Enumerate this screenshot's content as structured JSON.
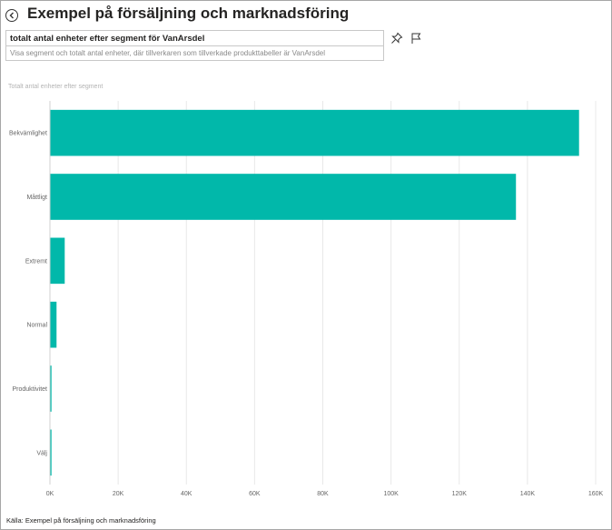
{
  "header": {
    "title": "Exempel på försäljning och marknadsföring",
    "back_icon": "back-arrow-icon"
  },
  "qa": {
    "question": "totalt antal enheter efter segment för VanArsdel",
    "restatement": "Visa segment och totalt antal enheter, där tillverkaren som tillverkade produkttabeller är VanArsdel",
    "pin_icon": "pin-icon",
    "flag_icon": "flag-icon"
  },
  "chart_data": {
    "type": "bar",
    "orientation": "horizontal",
    "title": "Totalt antal enheter efter segment",
    "categories": [
      "Bekvämlighet",
      "Måttligt",
      "Extremt",
      "Normal",
      "Produktivitet",
      "Välj"
    ],
    "values": [
      155000,
      136500,
      4200,
      1800,
      300,
      200
    ],
    "xlim": [
      0,
      160000
    ],
    "x_ticks": [
      0,
      20000,
      40000,
      60000,
      80000,
      100000,
      120000,
      140000,
      160000
    ],
    "x_tick_labels": [
      "0K",
      "20K",
      "40K",
      "60K",
      "80K",
      "100K",
      "120K",
      "140K",
      "160K"
    ],
    "grid": true,
    "bar_color": "#01b8aa",
    "grid_color": "#e8e8e8"
  },
  "footer": {
    "source": "Källa: Exempel på försäljning och marknadsföring"
  }
}
